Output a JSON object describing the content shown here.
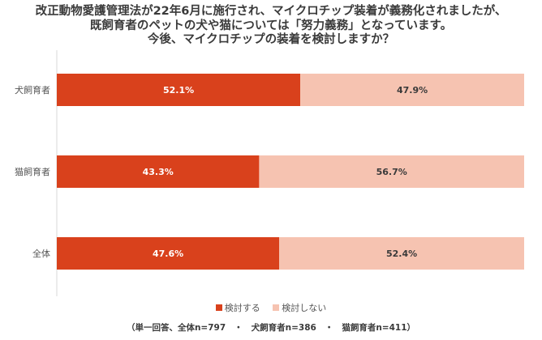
{
  "title_lines": [
    "改正動物愛護管理法が22年6月に施行され、マイクロチップ装着が義務化されましたが、",
    "既飼育者のペットの犬や猫については「努力義務」となっています。",
    "今後、マイクロチップの装着を検討しますか？"
  ],
  "footnote": "（単一回答、全体n=797　・　犬飼育者n=386　・　猫飼育者n=411）",
  "colors": {
    "consider": "#d9411c",
    "not_consider": "#f6c3b1"
  },
  "chart_data": {
    "type": "bar",
    "orientation": "horizontal",
    "stacked": "100%",
    "categories": [
      "犬飼育者",
      "猫飼育者",
      "全体"
    ],
    "series": [
      {
        "name": "検討する",
        "values": [
          52.1,
          43.3,
          47.6
        ],
        "labels": [
          "52.1%",
          "43.3%",
          "47.6%"
        ]
      },
      {
        "name": "検討しない",
        "values": [
          47.9,
          56.7,
          52.4
        ],
        "labels": [
          "47.9%",
          "56.7%",
          "52.4%"
        ]
      }
    ],
    "xlim": [
      0,
      100
    ],
    "grid": false,
    "legend": "bottom"
  }
}
